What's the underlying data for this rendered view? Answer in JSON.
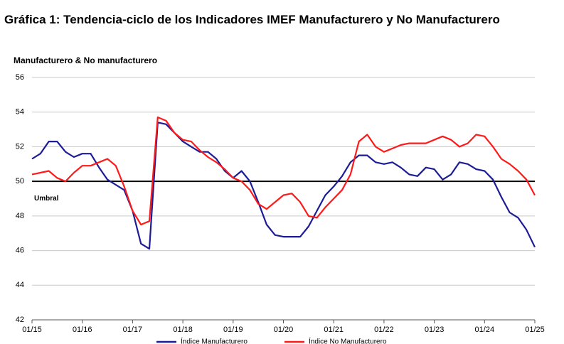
{
  "chart_data": {
    "type": "line",
    "title": "Gráfica 1: Tendencia-ciclo de los Indicadores IMEF Manufacturero y No Manufacturero",
    "subtitle": "Manufacturero & No manufacturero",
    "x": [
      "01/15",
      "03/15",
      "05/15",
      "07/15",
      "09/15",
      "11/15",
      "01/16",
      "03/16",
      "05/16",
      "07/16",
      "09/16",
      "11/16",
      "01/17",
      "03/17",
      "05/17",
      "07/17",
      "09/17",
      "11/17",
      "01/18",
      "03/18",
      "05/18",
      "07/18",
      "09/18",
      "11/18",
      "01/19",
      "03/19",
      "05/19",
      "07/19",
      "09/19",
      "11/19",
      "01/20",
      "03/20",
      "05/20",
      "07/20",
      "09/20",
      "11/20",
      "01/21",
      "03/21",
      "05/21",
      "07/21",
      "09/21",
      "11/21",
      "01/22",
      "03/22",
      "05/22",
      "07/22",
      "09/22",
      "11/22",
      "01/23",
      "03/23",
      "05/23",
      "07/23",
      "09/23",
      "11/23",
      "01/24",
      "03/24",
      "05/24",
      "07/24",
      "09/24",
      "11/24",
      "01/25"
    ],
    "series": [
      {
        "name": "Índice Manufacturero",
        "color": "#1c1c96",
        "values": [
          51.3,
          51.6,
          52.3,
          52.3,
          51.7,
          51.4,
          51.6,
          51.6,
          50.8,
          50.1,
          49.8,
          49.5,
          48.3,
          46.4,
          46.1,
          53.4,
          53.3,
          52.8,
          52.3,
          52.0,
          51.7,
          51.7,
          51.3,
          50.6,
          50.2,
          50.6,
          50.0,
          48.8,
          47.5,
          46.9,
          46.8,
          46.8,
          46.8,
          47.4,
          48.3,
          49.2,
          49.7,
          50.3,
          51.1,
          51.5,
          51.5,
          51.1,
          51.0,
          51.1,
          50.8,
          50.4,
          50.3,
          50.8,
          50.7,
          50.1,
          50.4,
          51.1,
          51.0,
          50.7,
          50.6,
          50.1,
          49.1,
          48.2,
          47.9,
          47.2,
          46.2
        ]
      },
      {
        "name": "Índice No Manufacturero",
        "color": "#ff1a1a",
        "values": [
          50.4,
          50.5,
          50.6,
          50.2,
          50.0,
          50.5,
          50.9,
          50.9,
          51.1,
          51.3,
          50.9,
          49.7,
          48.3,
          47.5,
          47.7,
          53.7,
          53.5,
          52.8,
          52.4,
          52.3,
          51.8,
          51.4,
          51.1,
          50.7,
          50.2,
          50.0,
          49.5,
          48.7,
          48.4,
          48.8,
          49.2,
          49.3,
          48.8,
          48.0,
          47.9,
          48.5,
          49.0,
          49.5,
          50.4,
          52.3,
          52.7,
          52.0,
          51.7,
          51.9,
          52.1,
          52.2,
          52.2,
          52.2,
          52.4,
          52.6,
          52.4,
          52.0,
          52.2,
          52.7,
          52.6,
          52.0,
          51.3,
          51.0,
          50.6,
          50.1,
          49.2
        ]
      }
    ],
    "ylim": [
      42,
      56
    ],
    "yticks": [
      42,
      44,
      46,
      48,
      50,
      52,
      54,
      56
    ],
    "grid": true,
    "annotations": [
      {
        "text": "Umbral",
        "y": 50
      }
    ],
    "legend": "bottom"
  }
}
